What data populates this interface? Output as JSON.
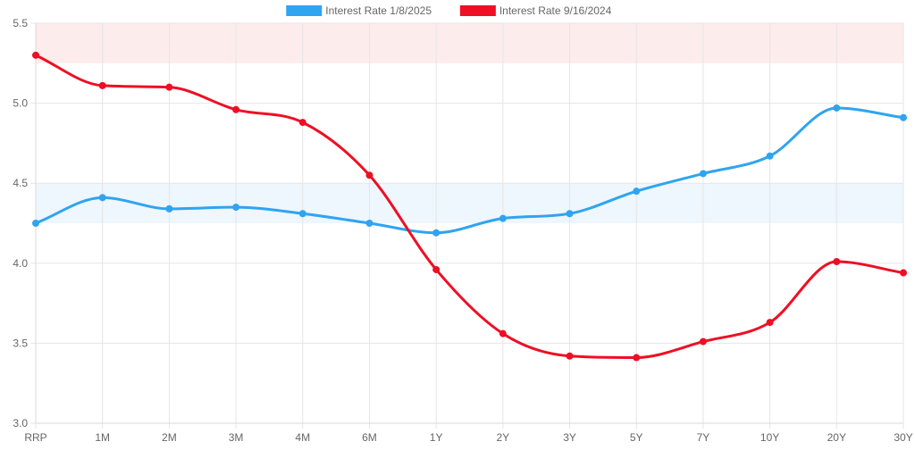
{
  "chart_data": {
    "type": "line",
    "categories": [
      "RRP",
      "1M",
      "2M",
      "3M",
      "4M",
      "6M",
      "1Y",
      "2Y",
      "3Y",
      "5Y",
      "7Y",
      "10Y",
      "20Y",
      "30Y"
    ],
    "ylim": [
      3.0,
      5.5
    ],
    "yticks": [
      "3.0",
      "3.5",
      "4.0",
      "4.5",
      "5.0",
      "5.5"
    ],
    "grid": true,
    "legend_position": "top-center",
    "bands": [
      {
        "from": 5.25,
        "to": 5.5,
        "color": "#fdecec"
      },
      {
        "from": 4.25,
        "to": 4.5,
        "color": "#eef6fe"
      }
    ],
    "series": [
      {
        "name": "Interest Rate 1/8/2025",
        "color": "#2fa4f0",
        "values": [
          4.25,
          4.41,
          4.34,
          4.35,
          4.31,
          4.25,
          4.19,
          4.28,
          4.31,
          4.45,
          4.56,
          4.67,
          4.97,
          4.91
        ]
      },
      {
        "name": "Interest Rate 9/16/2024",
        "color": "#ee0f24",
        "values": [
          5.3,
          5.11,
          5.1,
          4.96,
          4.88,
          4.55,
          3.96,
          3.56,
          3.42,
          3.41,
          3.51,
          3.63,
          4.01,
          3.94
        ]
      }
    ]
  }
}
